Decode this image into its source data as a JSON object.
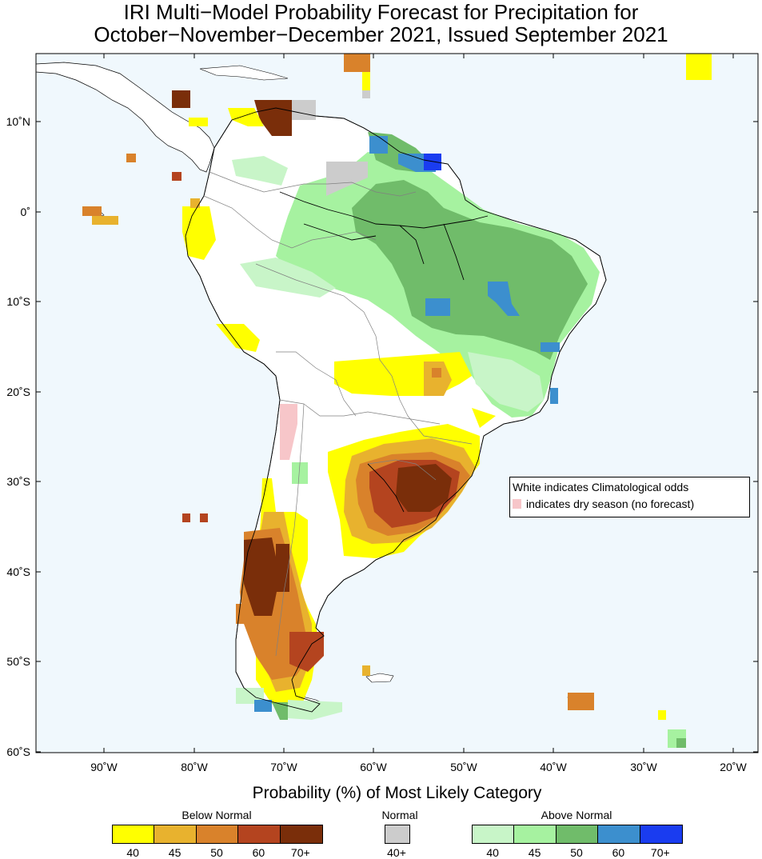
{
  "title": {
    "line1": "IRI Multi−Model Probability Forecast for Precipitation for",
    "line2": "October−November−December 2021, Issued September 2021"
  },
  "map": {
    "lat_ticks": [
      "10˚N",
      "0˚",
      "10˚S",
      "20˚S",
      "30˚S",
      "40˚S",
      "50˚S",
      "60˚S"
    ],
    "lon_ticks": [
      "90˚W",
      "80˚W",
      "70˚W",
      "60˚W",
      "50˚W",
      "40˚W",
      "30˚W",
      "20˚W"
    ],
    "ocean_color": "#f0f8fd",
    "land_color": "#ffffff"
  },
  "legend": {
    "line1": "White indicates Climatological odds",
    "line2": "indicates dry season (no forecast)",
    "dry_color": "#f7c6c9"
  },
  "colorbar": {
    "title": "Probability (%) of Most Likely Category",
    "below": {
      "label": "Below Normal",
      "ticks": [
        "40",
        "45",
        "50",
        "60",
        "70+"
      ],
      "colors": [
        "#ffff00",
        "#e8b22e",
        "#d9822b",
        "#b4441f",
        "#7a2e0a"
      ]
    },
    "normal": {
      "label": "Normal",
      "ticks": [
        "40+"
      ],
      "colors": [
        "#cccccc"
      ]
    },
    "above": {
      "label": "Above Normal",
      "ticks": [
        "40",
        "45",
        "50",
        "60",
        "70+"
      ],
      "colors": [
        "#c8f5c8",
        "#a6f2a0",
        "#70bc6a",
        "#3c8fce",
        "#1a3cf0"
      ]
    }
  }
}
